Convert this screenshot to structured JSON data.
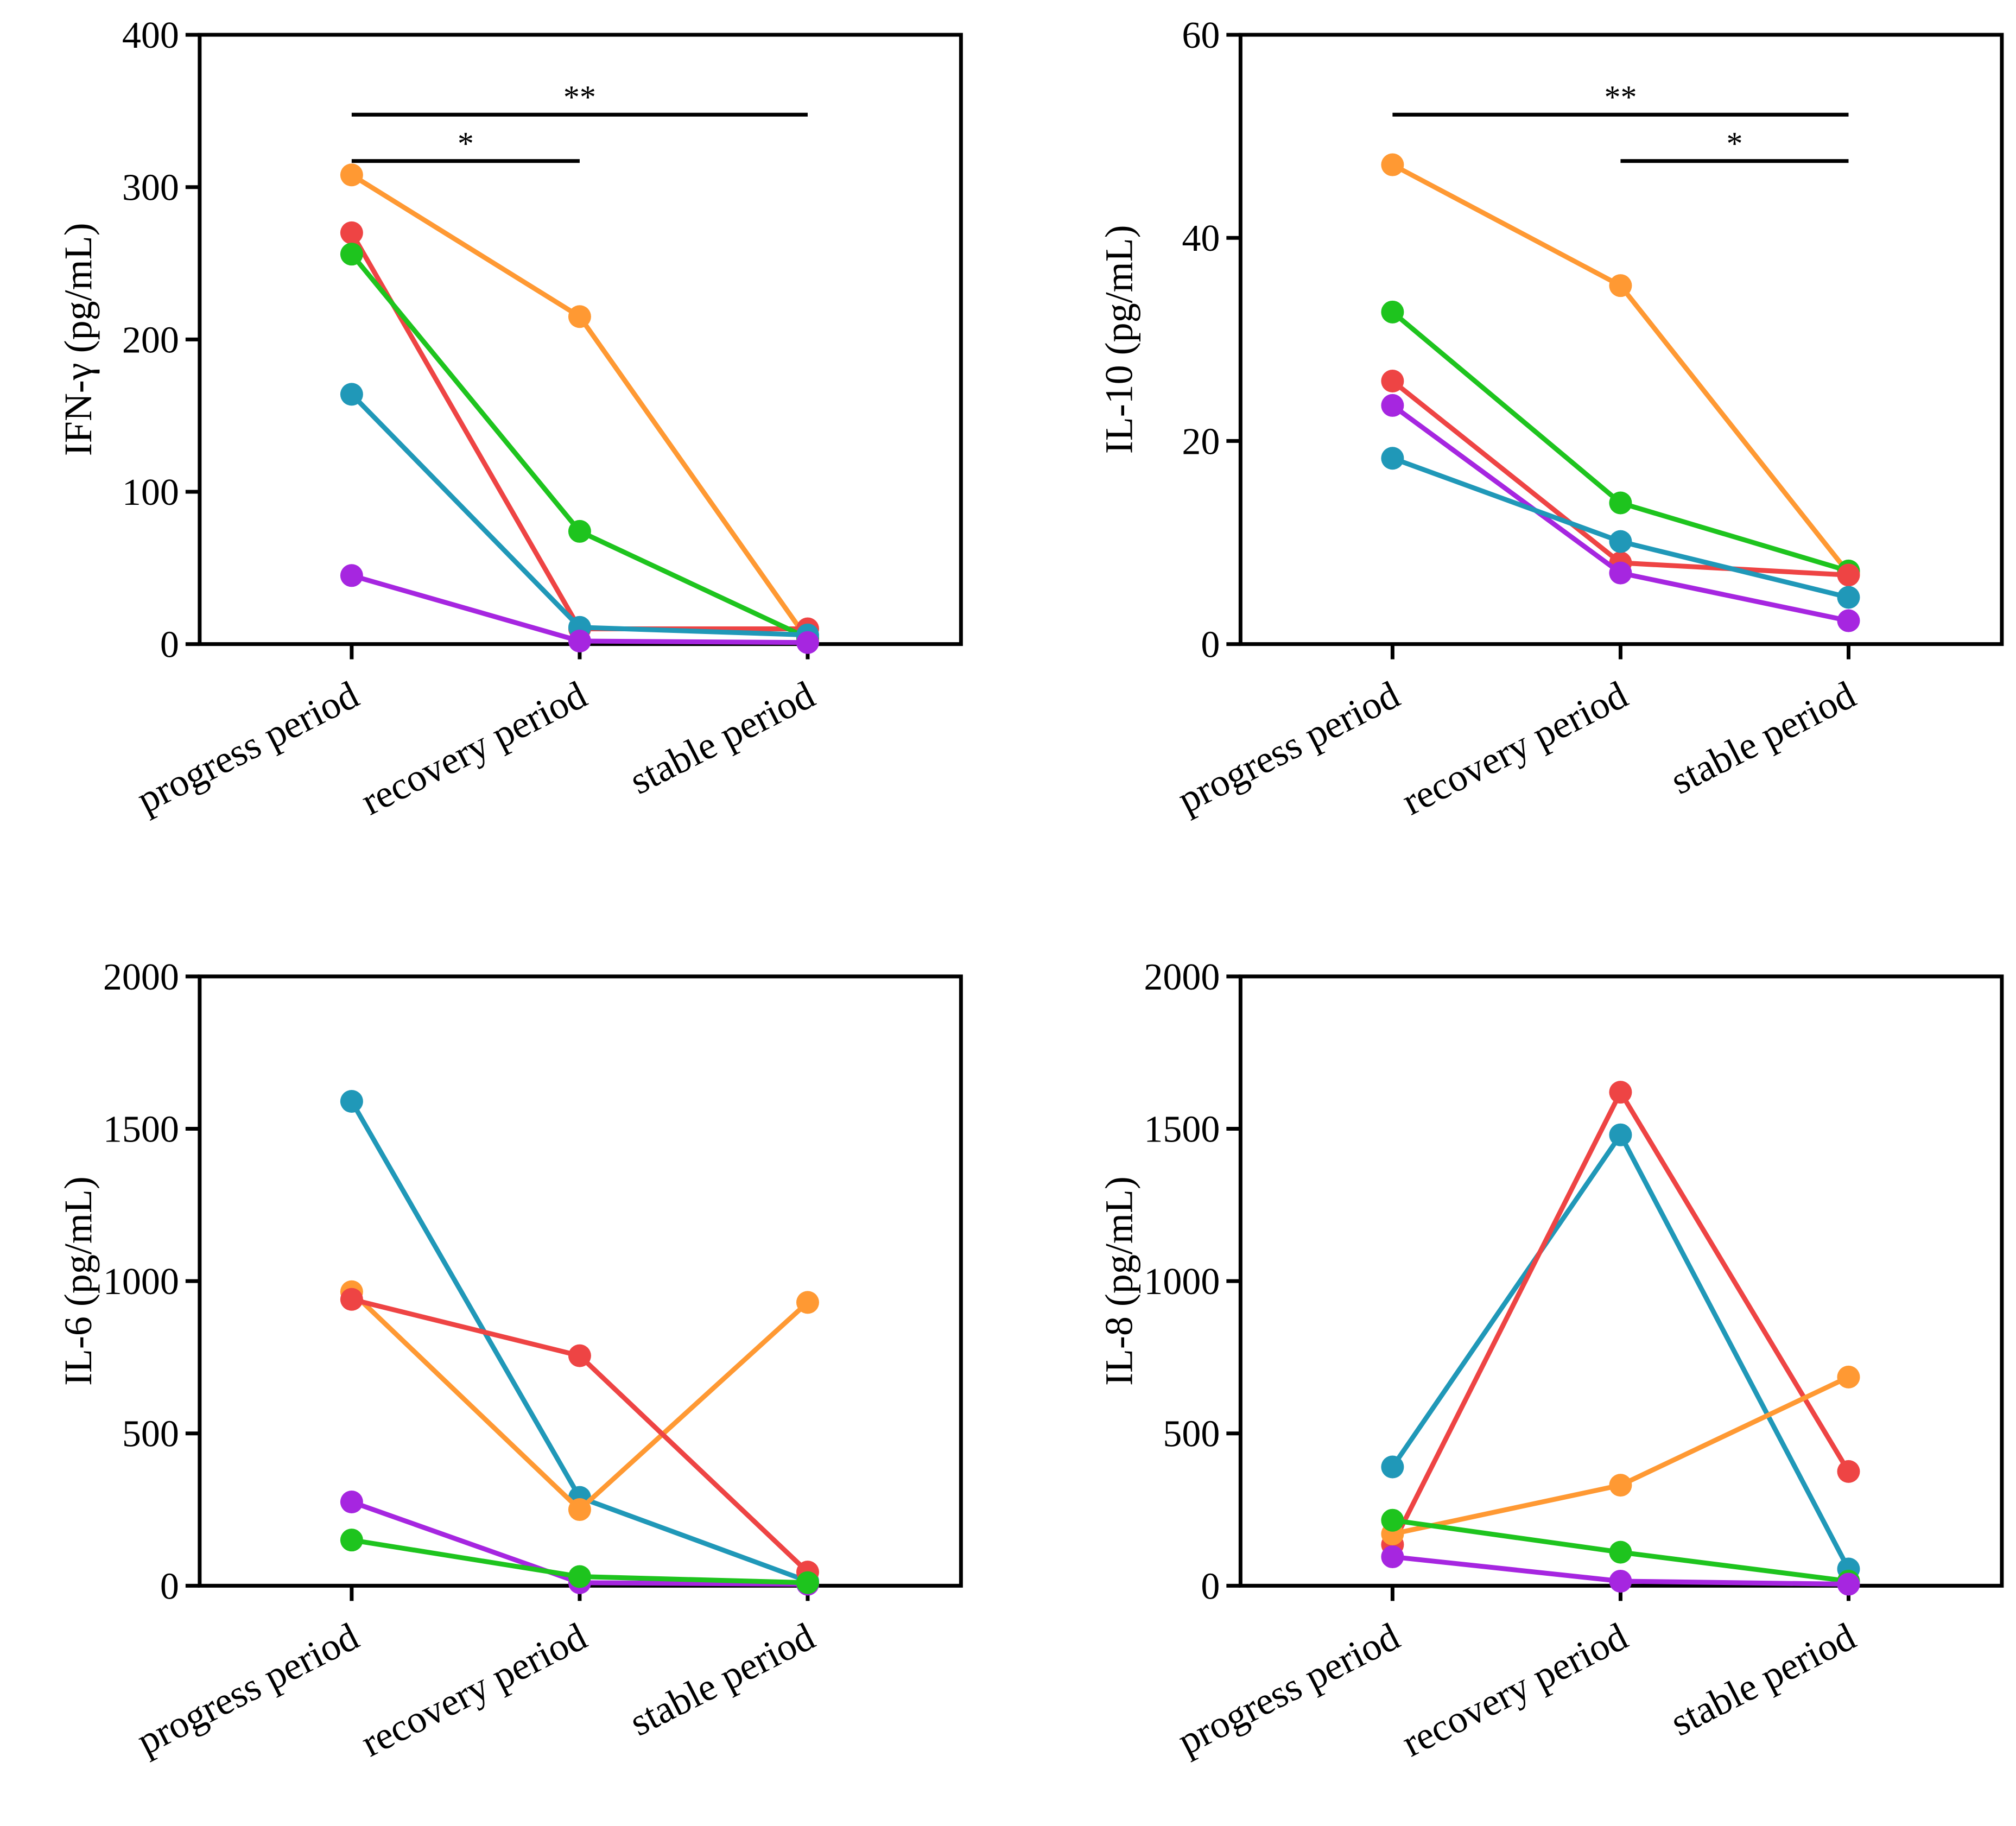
{
  "chart_data": [
    {
      "type": "line",
      "ylabel": "IFN-γ (pg/mL)",
      "ylim": [
        0,
        400
      ],
      "yticks": [
        "0",
        "100",
        "200",
        "300",
        "400"
      ],
      "categories": [
        "progress period",
        "recovery period",
        "stable period"
      ],
      "series": [
        {
          "color": "#FF9933",
          "values": [
            308,
            215,
            3
          ]
        },
        {
          "color": "#EE4444",
          "values": [
            270,
            10,
            10
          ]
        },
        {
          "color": "#1EC41E",
          "values": [
            256,
            74,
            4
          ]
        },
        {
          "color": "#2098B8",
          "values": [
            164,
            11,
            6
          ]
        },
        {
          "color": "#A626E0",
          "values": [
            45,
            2,
            1
          ]
        }
      ],
      "significance": [
        {
          "from": 0,
          "to": 2,
          "label": "**"
        },
        {
          "from": 0,
          "to": 1,
          "label": "*"
        }
      ]
    },
    {
      "type": "line",
      "ylabel": "IL-10 (pg/mL)",
      "ylim": [
        0,
        60
      ],
      "yticks": [
        "0",
        "20",
        "40",
        "60"
      ],
      "categories": [
        "progress period",
        "recovery period",
        "stable period"
      ],
      "series": [
        {
          "color": "#FF9933",
          "values": [
            47.2,
            35.3,
            7.0
          ]
        },
        {
          "color": "#1EC41E",
          "values": [
            32.7,
            13.9,
            7.2
          ]
        },
        {
          "color": "#EE4444",
          "values": [
            25.9,
            8.0,
            6.8
          ]
        },
        {
          "color": "#A626E0",
          "values": [
            23.5,
            7.0,
            2.3
          ]
        },
        {
          "color": "#2098B8",
          "values": [
            18.3,
            10.1,
            4.6
          ]
        }
      ],
      "significance": [
        {
          "from": 0,
          "to": 2,
          "label": "**"
        },
        {
          "from": 1,
          "to": 2,
          "label": "*"
        }
      ]
    },
    {
      "type": "line",
      "ylabel": "IL-6 (pg/mL)",
      "ylim": [
        0,
        2000
      ],
      "yticks": [
        "0",
        "500",
        "1000",
        "1500",
        "2000"
      ],
      "categories": [
        "progress period",
        "recovery period",
        "stable period"
      ],
      "series": [
        {
          "color": "#2098B8",
          "values": [
            1590,
            290,
            15
          ]
        },
        {
          "color": "#FF9933",
          "values": [
            965,
            250,
            930
          ]
        },
        {
          "color": "#EE4444",
          "values": [
            940,
            755,
            45
          ]
        },
        {
          "color": "#A626E0",
          "values": [
            275,
            10,
            5
          ]
        },
        {
          "color": "#1EC41E",
          "values": [
            150,
            30,
            10
          ]
        }
      ],
      "significance": []
    },
    {
      "type": "line",
      "ylabel": "IL-8 (pg/mL)",
      "ylim": [
        0,
        2000
      ],
      "yticks": [
        "0",
        "500",
        "1000",
        "1500",
        "2000"
      ],
      "categories": [
        "progress period",
        "recovery period",
        "stable period"
      ],
      "series": [
        {
          "color": "#2098B8",
          "values": [
            390,
            1480,
            55
          ]
        },
        {
          "color": "#EE4444",
          "values": [
            135,
            1620,
            375
          ]
        },
        {
          "color": "#FF9933",
          "values": [
            170,
            330,
            685
          ]
        },
        {
          "color": "#1EC41E",
          "values": [
            215,
            110,
            15
          ]
        },
        {
          "color": "#A626E0",
          "values": [
            95,
            15,
            5
          ]
        }
      ],
      "significance": []
    }
  ]
}
